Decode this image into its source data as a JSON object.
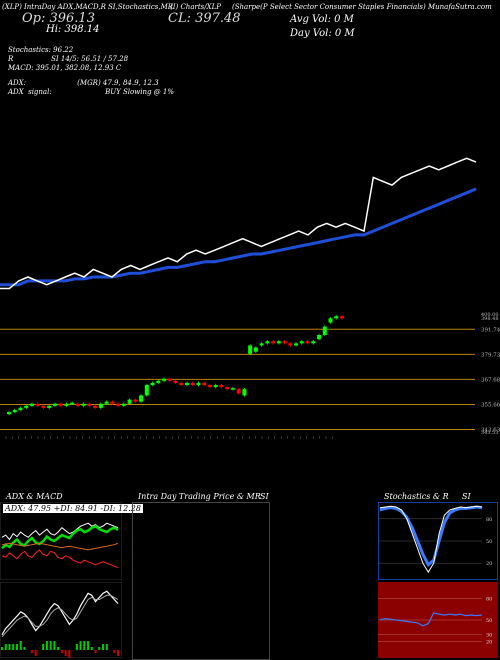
{
  "header": {
    "line1_left": "(XLP) IntraDay ADX,MACD,R",
    "line1_mid": "SI,Stochastics,MR",
    "line1_right_a": "(I) Charts/XLP",
    "line1_right_b": "(Sharpe(P Select Sector Consumer Staples Financials) MunafaSutra.com",
    "open_label": "Op: 396.13",
    "close_label": "CL: 397.48",
    "high_label": "Hi: 398.14",
    "day_vol": "Day Vol: 0   M",
    "avg_vol": "Avg Vol: 0   M"
  },
  "indicators": {
    "stochastics": "Stochastics: 96.22",
    "rsi": "R                 SI 14/5: 56.51 / 57.28",
    "macd": "MACD: 395.01, 382.08, 12.93 C",
    "adx": "ADX:                       (MGR) 47.9, 84.9, 12.3",
    "adx_signal": "ADX  signal:                        BUY Slowing @ 1%"
  },
  "panels": {
    "adx_title": "ADX  & MACD",
    "adx_values": "ADX: 47.95 +DI: 84.91 -DI: 12.28",
    "intraday_title": "Intra  Day Trading Price  & MR",
    "intraday_title2": "SI",
    "stoch_title": "Stochastics & R",
    "stoch_title2": "SI"
  },
  "colors": {
    "price_line": "#ffffff",
    "ma_line": "#1f4fd8",
    "up_candle": "#00ff00",
    "down_candle": "#ff0000",
    "level_line": "#b8860b",
    "rsi_panel": "#8b0000",
    "stoch_border": "#1f4fd8"
  },
  "chart_data": [
    {
      "type": "line",
      "name": "price_overview",
      "series": [
        {
          "values": [
            364,
            364,
            366,
            367,
            366,
            365,
            366,
            367,
            368,
            367,
            369,
            368,
            367,
            369,
            370,
            369,
            370,
            371,
            372,
            371,
            373,
            374,
            373,
            374,
            375,
            376,
            377,
            376,
            375,
            376,
            377,
            378,
            379,
            378,
            380,
            381,
            380,
            381,
            380,
            379,
            393,
            392,
            391,
            393,
            394,
            395,
            396,
            395,
            396,
            397,
            398,
            397
          ]
        },
        {
          "values": [
            365,
            365,
            365,
            366,
            366,
            366,
            366,
            366,
            366.5,
            366.5,
            367,
            367,
            367,
            367.5,
            368,
            368,
            368.5,
            369,
            369.5,
            369.5,
            370,
            370.5,
            371,
            371,
            371.5,
            372,
            372.5,
            373,
            373,
            373.5,
            374,
            374.5,
            375,
            375.5,
            376,
            376.5,
            377,
            377.5,
            378,
            378,
            379,
            380,
            381,
            382,
            383,
            384,
            385,
            386,
            387,
            388,
            389,
            390
          ]
        }
      ]
    },
    {
      "type": "candlestick",
      "name": "price_candles",
      "levels": [
        391.74,
        379.73,
        367.68,
        355.66,
        343.63
      ],
      "levels_labels": [
        "391.74",
        "379.73",
        "367.68",
        "355.66",
        "343.63"
      ],
      "top_labels": [
        "400.00",
        "398.48"
      ],
      "bottom_label": "343.53",
      "ylim": [
        341,
        401
      ],
      "candles": [
        {
          "o": 351,
          "c": 352
        },
        {
          "o": 352,
          "c": 353
        },
        {
          "o": 353,
          "c": 354
        },
        {
          "o": 354,
          "c": 355
        },
        {
          "o": 355,
          "c": 356
        },
        {
          "o": 356,
          "c": 355
        },
        {
          "o": 355,
          "c": 354
        },
        {
          "o": 354,
          "c": 355
        },
        {
          "o": 355,
          "c": 356
        },
        {
          "o": 356,
          "c": 355
        },
        {
          "o": 355,
          "c": 356
        },
        {
          "o": 356,
          "c": 356.5
        },
        {
          "o": 356,
          "c": 355
        },
        {
          "o": 355,
          "c": 356
        },
        {
          "o": 356,
          "c": 355
        },
        {
          "o": 355,
          "c": 354
        },
        {
          "o": 354,
          "c": 356
        },
        {
          "o": 356,
          "c": 357
        },
        {
          "o": 357,
          "c": 356
        },
        {
          "o": 356,
          "c": 355
        },
        {
          "o": 355,
          "c": 356
        },
        {
          "o": 356,
          "c": 358
        },
        {
          "o": 358,
          "c": 357
        },
        {
          "o": 357,
          "c": 360
        },
        {
          "o": 360,
          "c": 365
        },
        {
          "o": 365,
          "c": 366
        },
        {
          "o": 366,
          "c": 367
        },
        {
          "o": 367,
          "c": 368
        },
        {
          "o": 368,
          "c": 367
        },
        {
          "o": 367,
          "c": 366
        },
        {
          "o": 366,
          "c": 365
        },
        {
          "o": 365,
          "c": 366
        },
        {
          "o": 366,
          "c": 365
        },
        {
          "o": 365,
          "c": 366
        },
        {
          "o": 366,
          "c": 365
        },
        {
          "o": 365,
          "c": 364
        },
        {
          "o": 364,
          "c": 365
        },
        {
          "o": 365,
          "c": 364
        },
        {
          "o": 364,
          "c": 363
        },
        {
          "o": 363,
          "c": 363.5
        },
        {
          "o": 363,
          "c": 361
        },
        {
          "o": 360,
          "c": 363
        },
        {
          "o": 380,
          "c": 384
        },
        {
          "o": 381,
          "c": 383
        },
        {
          "o": 384,
          "c": 385
        },
        {
          "o": 385,
          "c": 386
        },
        {
          "o": 386,
          "c": 385
        },
        {
          "o": 385,
          "c": 386
        },
        {
          "o": 386,
          "c": 385
        },
        {
          "o": 385,
          "c": 384
        },
        {
          "o": 384,
          "c": 385
        },
        {
          "o": 385,
          "c": 386
        },
        {
          "o": 386,
          "c": 385
        },
        {
          "o": 385,
          "c": 386
        },
        {
          "o": 387,
          "c": 389
        },
        {
          "o": 389,
          "c": 393
        },
        {
          "o": 395,
          "c": 397
        },
        {
          "o": 397,
          "c": 398
        },
        {
          "o": 398,
          "c": 397
        }
      ]
    },
    {
      "type": "line",
      "name": "adx_panel",
      "ylim": [
        0,
        100
      ],
      "series": [
        {
          "values": [
            55,
            58,
            52,
            60,
            56,
            62,
            58,
            55,
            60,
            64,
            58,
            62,
            66,
            60,
            58,
            62,
            68,
            64,
            60,
            62,
            66,
            70,
            72,
            74,
            70,
            72,
            68,
            70,
            74,
            72,
            70,
            68
          ]
        },
        {
          "values": [
            40,
            45,
            42,
            48,
            52,
            46,
            44,
            50,
            54,
            48,
            46,
            50,
            56,
            52,
            50,
            54,
            58,
            56,
            54,
            60,
            64,
            66,
            62,
            64,
            68,
            70,
            66,
            64,
            62,
            66,
            68,
            65
          ]
        },
        {
          "values": [
            30,
            28,
            34,
            30,
            26,
            32,
            36,
            30,
            28,
            34,
            38,
            32,
            30,
            36,
            34,
            28,
            26,
            30,
            28,
            24,
            22,
            20,
            24,
            22,
            20,
            18,
            20,
            22,
            20,
            18,
            16,
            14
          ]
        },
        {
          "values": [
            45,
            46,
            47,
            46,
            45,
            44,
            43,
            44,
            45,
            46,
            47,
            46,
            45,
            44,
            43,
            42,
            41,
            42,
            43,
            42,
            41,
            40,
            39,
            38,
            39,
            40,
            41,
            42,
            43,
            44,
            45,
            47
          ]
        }
      ]
    },
    {
      "type": "line",
      "name": "macd_panel",
      "series": [
        {
          "values": [
            20,
            26,
            30,
            34,
            38,
            42,
            40,
            36,
            30,
            24,
            28,
            34,
            40,
            46,
            50,
            48,
            42,
            36,
            30,
            34,
            40,
            48,
            54,
            60,
            58,
            52,
            56,
            60,
            62,
            58,
            54,
            50
          ]
        },
        {
          "values": [
            18,
            22,
            26,
            30,
            34,
            36,
            38,
            36,
            32,
            28,
            28,
            30,
            34,
            40,
            44,
            46,
            44,
            40,
            36,
            34,
            36,
            42,
            48,
            54,
            56,
            54,
            54,
            56,
            58,
            58,
            56,
            54
          ]
        }
      ]
    },
    {
      "type": "line",
      "name": "stochastics_panel",
      "levels": [
        80,
        50,
        20
      ],
      "levels_labels": [
        "80",
        "50",
        "20"
      ],
      "ylim": [
        0,
        100
      ],
      "series": [
        {
          "values": [
            95,
            96,
            97,
            96,
            92,
            80,
            60,
            40,
            20,
            8,
            20,
            60,
            85,
            92,
            94,
            96,
            95,
            96,
            97,
            96
          ]
        },
        {
          "values": [
            92,
            94,
            95,
            94,
            90,
            82,
            68,
            50,
            32,
            18,
            24,
            50,
            75,
            88,
            92,
            94,
            94,
            95,
            96,
            95
          ]
        }
      ]
    },
    {
      "type": "line",
      "name": "rsi_panel",
      "levels": [
        80,
        50,
        30,
        20
      ],
      "levels_labels": [
        "80",
        "50",
        "30",
        "20"
      ],
      "ylim": [
        0,
        100
      ],
      "series": [
        {
          "values": [
            50,
            52,
            51,
            50,
            49,
            48,
            47,
            46,
            42,
            45,
            60,
            58,
            57,
            58,
            57,
            58,
            56,
            57,
            56,
            57
          ]
        }
      ]
    }
  ]
}
